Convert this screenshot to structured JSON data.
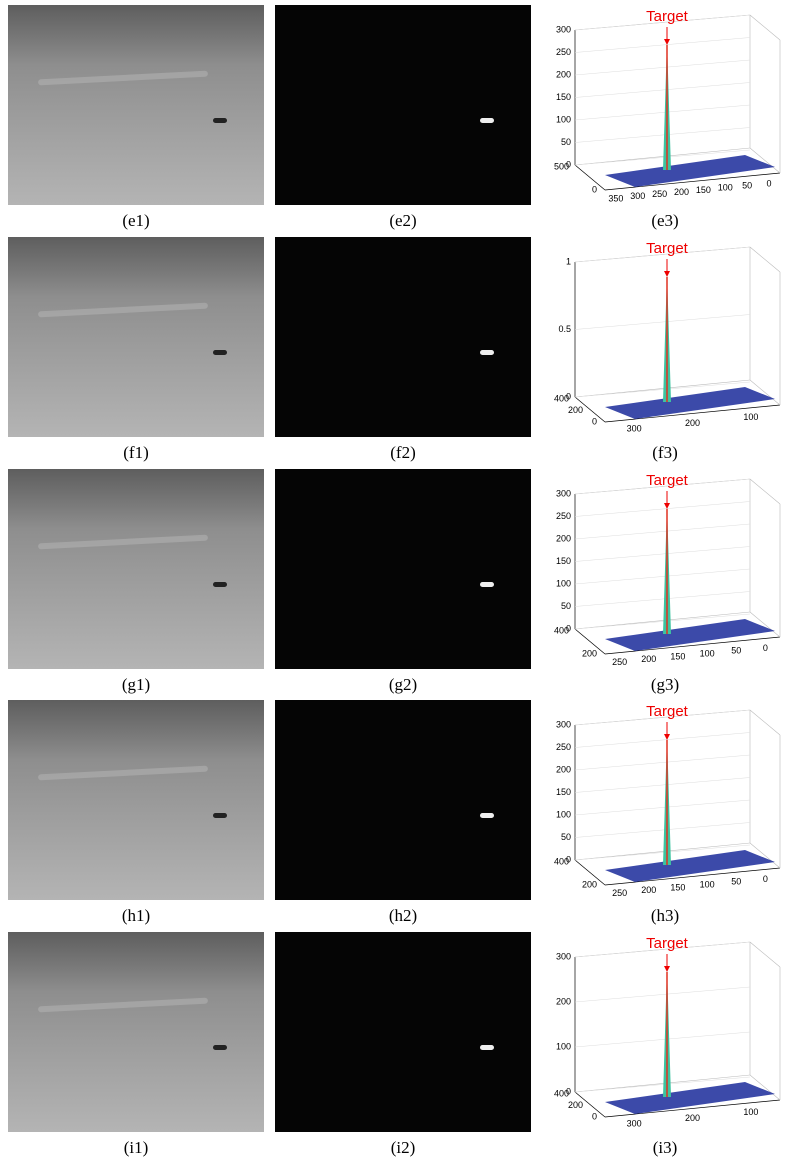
{
  "rows": [
    {
      "panels": [
        {
          "caption": "(e1)"
        },
        {
          "caption": "(e2)"
        },
        {
          "caption": "(e3)",
          "annotation": "Target",
          "zticks": [
            "0",
            "50",
            "100",
            "150",
            "200",
            "250",
            "300"
          ],
          "yticks": [
            "500",
            "0"
          ],
          "xticks": [
            "350",
            "300",
            "250",
            "200",
            "150",
            "100",
            "50",
            "0"
          ]
        }
      ]
    },
    {
      "panels": [
        {
          "caption": "(f1)"
        },
        {
          "caption": "(f2)"
        },
        {
          "caption": "(f3)",
          "annotation": "Target",
          "zticks": [
            "0",
            "0.5",
            "1"
          ],
          "yticks": [
            "400",
            "200",
            "0"
          ],
          "xticks": [
            "300",
            "200",
            "100"
          ]
        }
      ]
    },
    {
      "panels": [
        {
          "caption": "(g1)"
        },
        {
          "caption": "(g2)"
        },
        {
          "caption": "(g3)",
          "annotation": "Target",
          "zticks": [
            "0",
            "50",
            "100",
            "150",
            "200",
            "250",
            "300"
          ],
          "yticks": [
            "400",
            "200"
          ],
          "xticks": [
            "250",
            "200",
            "150",
            "100",
            "50",
            "0"
          ]
        }
      ]
    },
    {
      "panels": [
        {
          "caption": "(h1)"
        },
        {
          "caption": "(h2)"
        },
        {
          "caption": "(h3)",
          "annotation": "Target",
          "zticks": [
            "0",
            "50",
            "100",
            "150",
            "200",
            "250",
            "300"
          ],
          "yticks": [
            "400",
            "200"
          ],
          "xticks": [
            "250",
            "200",
            "150",
            "100",
            "50",
            "0"
          ]
        }
      ]
    },
    {
      "panels": [
        {
          "caption": "(i1)"
        },
        {
          "caption": "(i2)"
        },
        {
          "caption": "(i3)",
          "annotation": "Target",
          "zticks": [
            "0",
            "100",
            "200",
            "300"
          ],
          "yticks": [
            "400",
            "200",
            "0"
          ],
          "xticks": [
            "300",
            "200",
            "100"
          ]
        }
      ]
    }
  ]
}
